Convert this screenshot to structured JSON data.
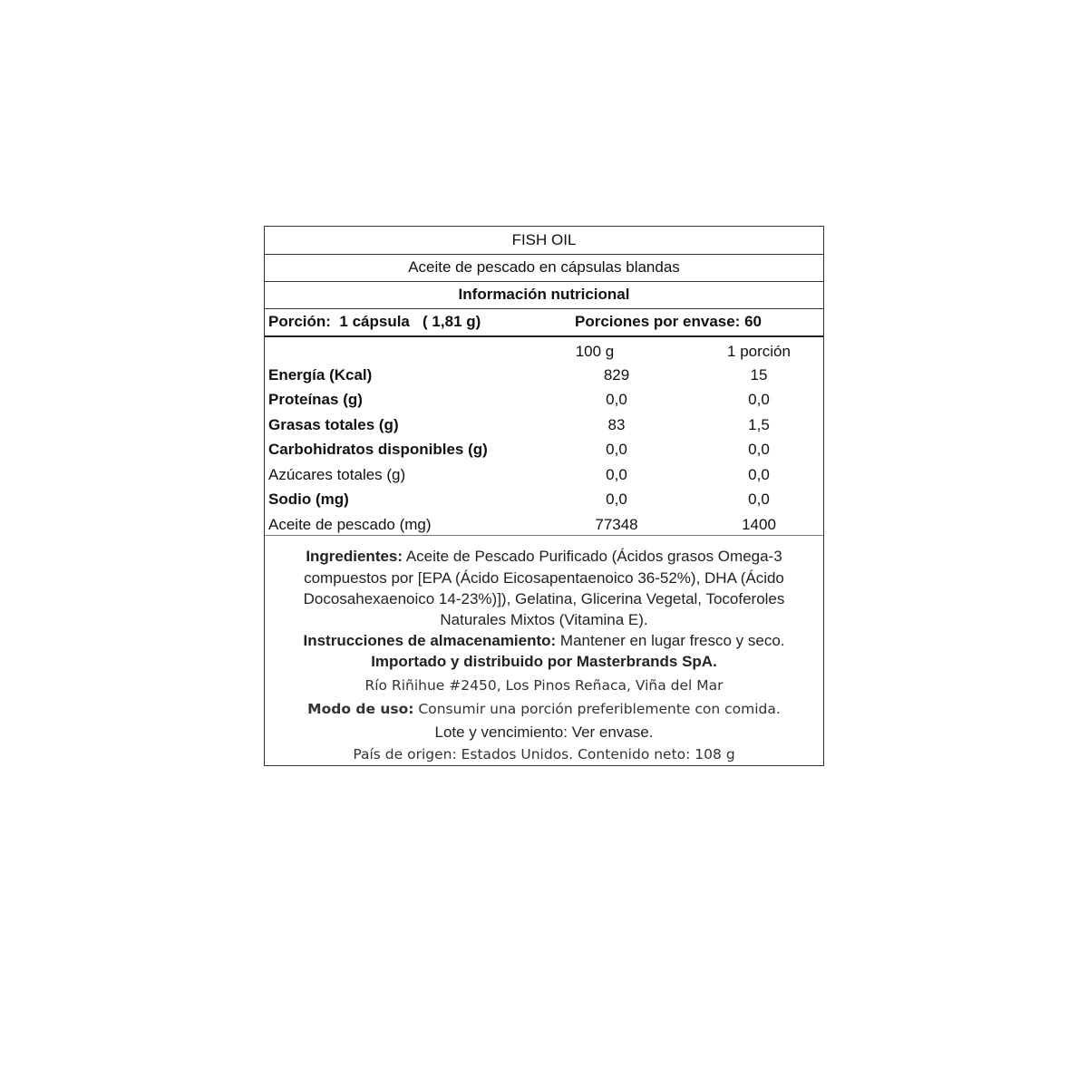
{
  "header": {
    "title": "FISH OIL",
    "subtitle": "Aceite de pescado en cápsulas blandas",
    "section": "Información nutricional",
    "portion": "Porción:  1 cápsula   ( 1,81 g)",
    "servings": "Porciones por envase: 60"
  },
  "table": {
    "columns": [
      "100 g",
      "1 porción"
    ],
    "rows": [
      {
        "name": "Energía (Kcal)",
        "per100": "829",
        "perPortion": "15"
      },
      {
        "name": "Proteínas (g)",
        "per100": "0,0",
        "perPortion": "0,0"
      },
      {
        "name": "Grasas totales (g)",
        "per100": "83",
        "perPortion": "1,5"
      },
      {
        "name": "Carbohidratos disponibles (g)",
        "per100": "0,0",
        "perPortion": "0,0"
      },
      {
        "name": "Azúcares totales (g)",
        "per100": "0,0",
        "perPortion": "0,0"
      },
      {
        "name": "Sodio (mg)",
        "per100": "0,0",
        "perPortion": "0,0"
      },
      {
        "name": "Aceite de pescado (mg)",
        "per100": "77348",
        "perPortion": "1400"
      }
    ]
  },
  "footer": {
    "ingredients_label": "Ingredientes:",
    "ingredients_1": " Aceite de Pescado Purificado (Ácidos grasos Omega-3",
    "ingredients_2": "compuestos por [EPA (Ácido Eicosapentaenoico 36-52%), DHA (Ácido",
    "ingredients_3": "Docosahexaenoico 14-23%)]), Gelatina, Glicerina Vegetal, Tocoferoles",
    "ingredients_4": "Naturales Mixtos (Vitamina E).",
    "storage_label": "Instrucciones de almacenamiento:",
    "storage": " Mantener en lugar fresco y seco.",
    "importer": "Importado y distribuido por Masterbrands SpA.",
    "address": "Río Riñihue #2450, Los Pinos Reñaca, Viña del Mar",
    "usage_label": "Modo de uso:",
    "usage": " Consumir una porción preferiblemente con comida.",
    "lot": "Lote y vencimiento: Ver envase.",
    "origin": "País de origen: Estados Unidos. Contenido neto: 108 g"
  }
}
